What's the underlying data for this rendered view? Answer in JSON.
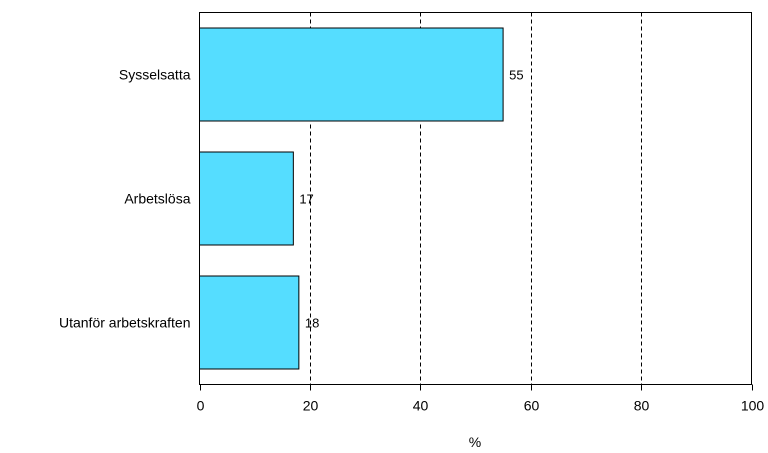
{
  "chart_data": {
    "type": "bar",
    "orientation": "horizontal",
    "categories": [
      "Sysselsatta",
      "Arbetslösa",
      "Utanför arbetskraften"
    ],
    "values": [
      55,
      17,
      18
    ],
    "data_labels": [
      "55",
      "17",
      "18"
    ],
    "xlabel": "%",
    "ylabel": "",
    "xlim": [
      0,
      100
    ],
    "xticks": [
      "0",
      "20",
      "40",
      "60",
      "80",
      "100"
    ],
    "grid": "vertical dashed",
    "legend": "none",
    "bar_color": "#55ddff",
    "bar_edge_color": "#000000"
  }
}
